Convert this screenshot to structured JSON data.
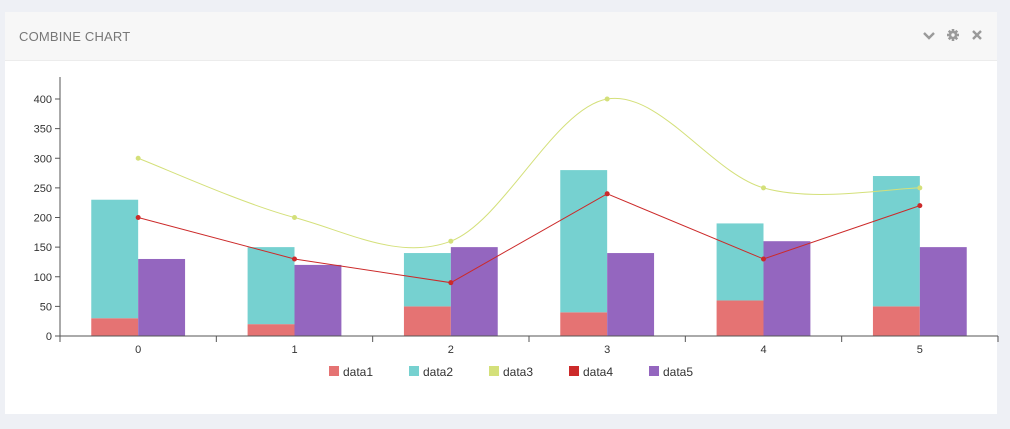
{
  "panel": {
    "title": "COMBINE CHART",
    "tools": [
      "chevron-down-icon",
      "gear-icon",
      "close-icon"
    ]
  },
  "chart_data": {
    "type": "bar",
    "categories": [
      "0",
      "1",
      "2",
      "3",
      "4",
      "5"
    ],
    "ylim": [
      0,
      400
    ],
    "yticks": [
      0,
      50,
      100,
      150,
      200,
      250,
      300,
      350,
      400
    ],
    "grid": false,
    "legend_position": "bottom",
    "series": [
      {
        "name": "data1",
        "type": "stacked-bar",
        "stack": "a",
        "color": "#e57373",
        "values": [
          30,
          20,
          50,
          40,
          60,
          50
        ]
      },
      {
        "name": "data2",
        "type": "stacked-bar",
        "stack": "a",
        "color": "#76d1d0",
        "values": [
          200,
          130,
          90,
          240,
          130,
          220
        ]
      },
      {
        "name": "data3",
        "type": "spline",
        "color": "#d4e07a",
        "values": [
          300,
          200,
          160,
          400,
          250,
          250
        ]
      },
      {
        "name": "data4",
        "type": "line",
        "color": "#cc2a2a",
        "values": [
          200,
          130,
          90,
          240,
          130,
          220
        ]
      },
      {
        "name": "data5",
        "type": "bar",
        "color": "#9466bf",
        "values": [
          130,
          120,
          150,
          140,
          160,
          150
        ]
      }
    ]
  }
}
